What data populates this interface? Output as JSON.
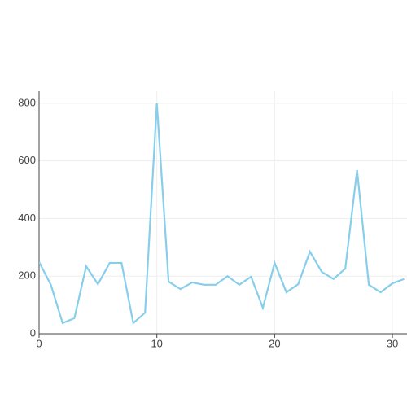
{
  "chart_data": {
    "type": "line",
    "x": [
      0,
      1,
      2,
      3,
      4,
      5,
      6,
      7,
      8,
      9,
      10,
      11,
      12,
      13,
      14,
      15,
      16,
      17,
      18,
      19,
      20,
      21,
      22,
      23,
      24,
      25,
      26,
      27,
      28,
      29,
      30,
      31
    ],
    "series": [
      {
        "color": "#87ceeb",
        "values": [
          249,
          170,
          37,
          54,
          234,
          172,
          246,
          246,
          37,
          73,
          800,
          181,
          155,
          178,
          170,
          170,
          200,
          170,
          198,
          90,
          246,
          144,
          172,
          285,
          215,
          190,
          226,
          568,
          170,
          144,
          175,
          190
        ]
      }
    ],
    "xlim": [
      0,
      31.24
    ],
    "ylim": [
      0,
      842
    ],
    "xticks": [
      0,
      10,
      20,
      30
    ],
    "yticks": [
      0,
      200,
      400,
      600,
      800
    ],
    "grid": true
  }
}
